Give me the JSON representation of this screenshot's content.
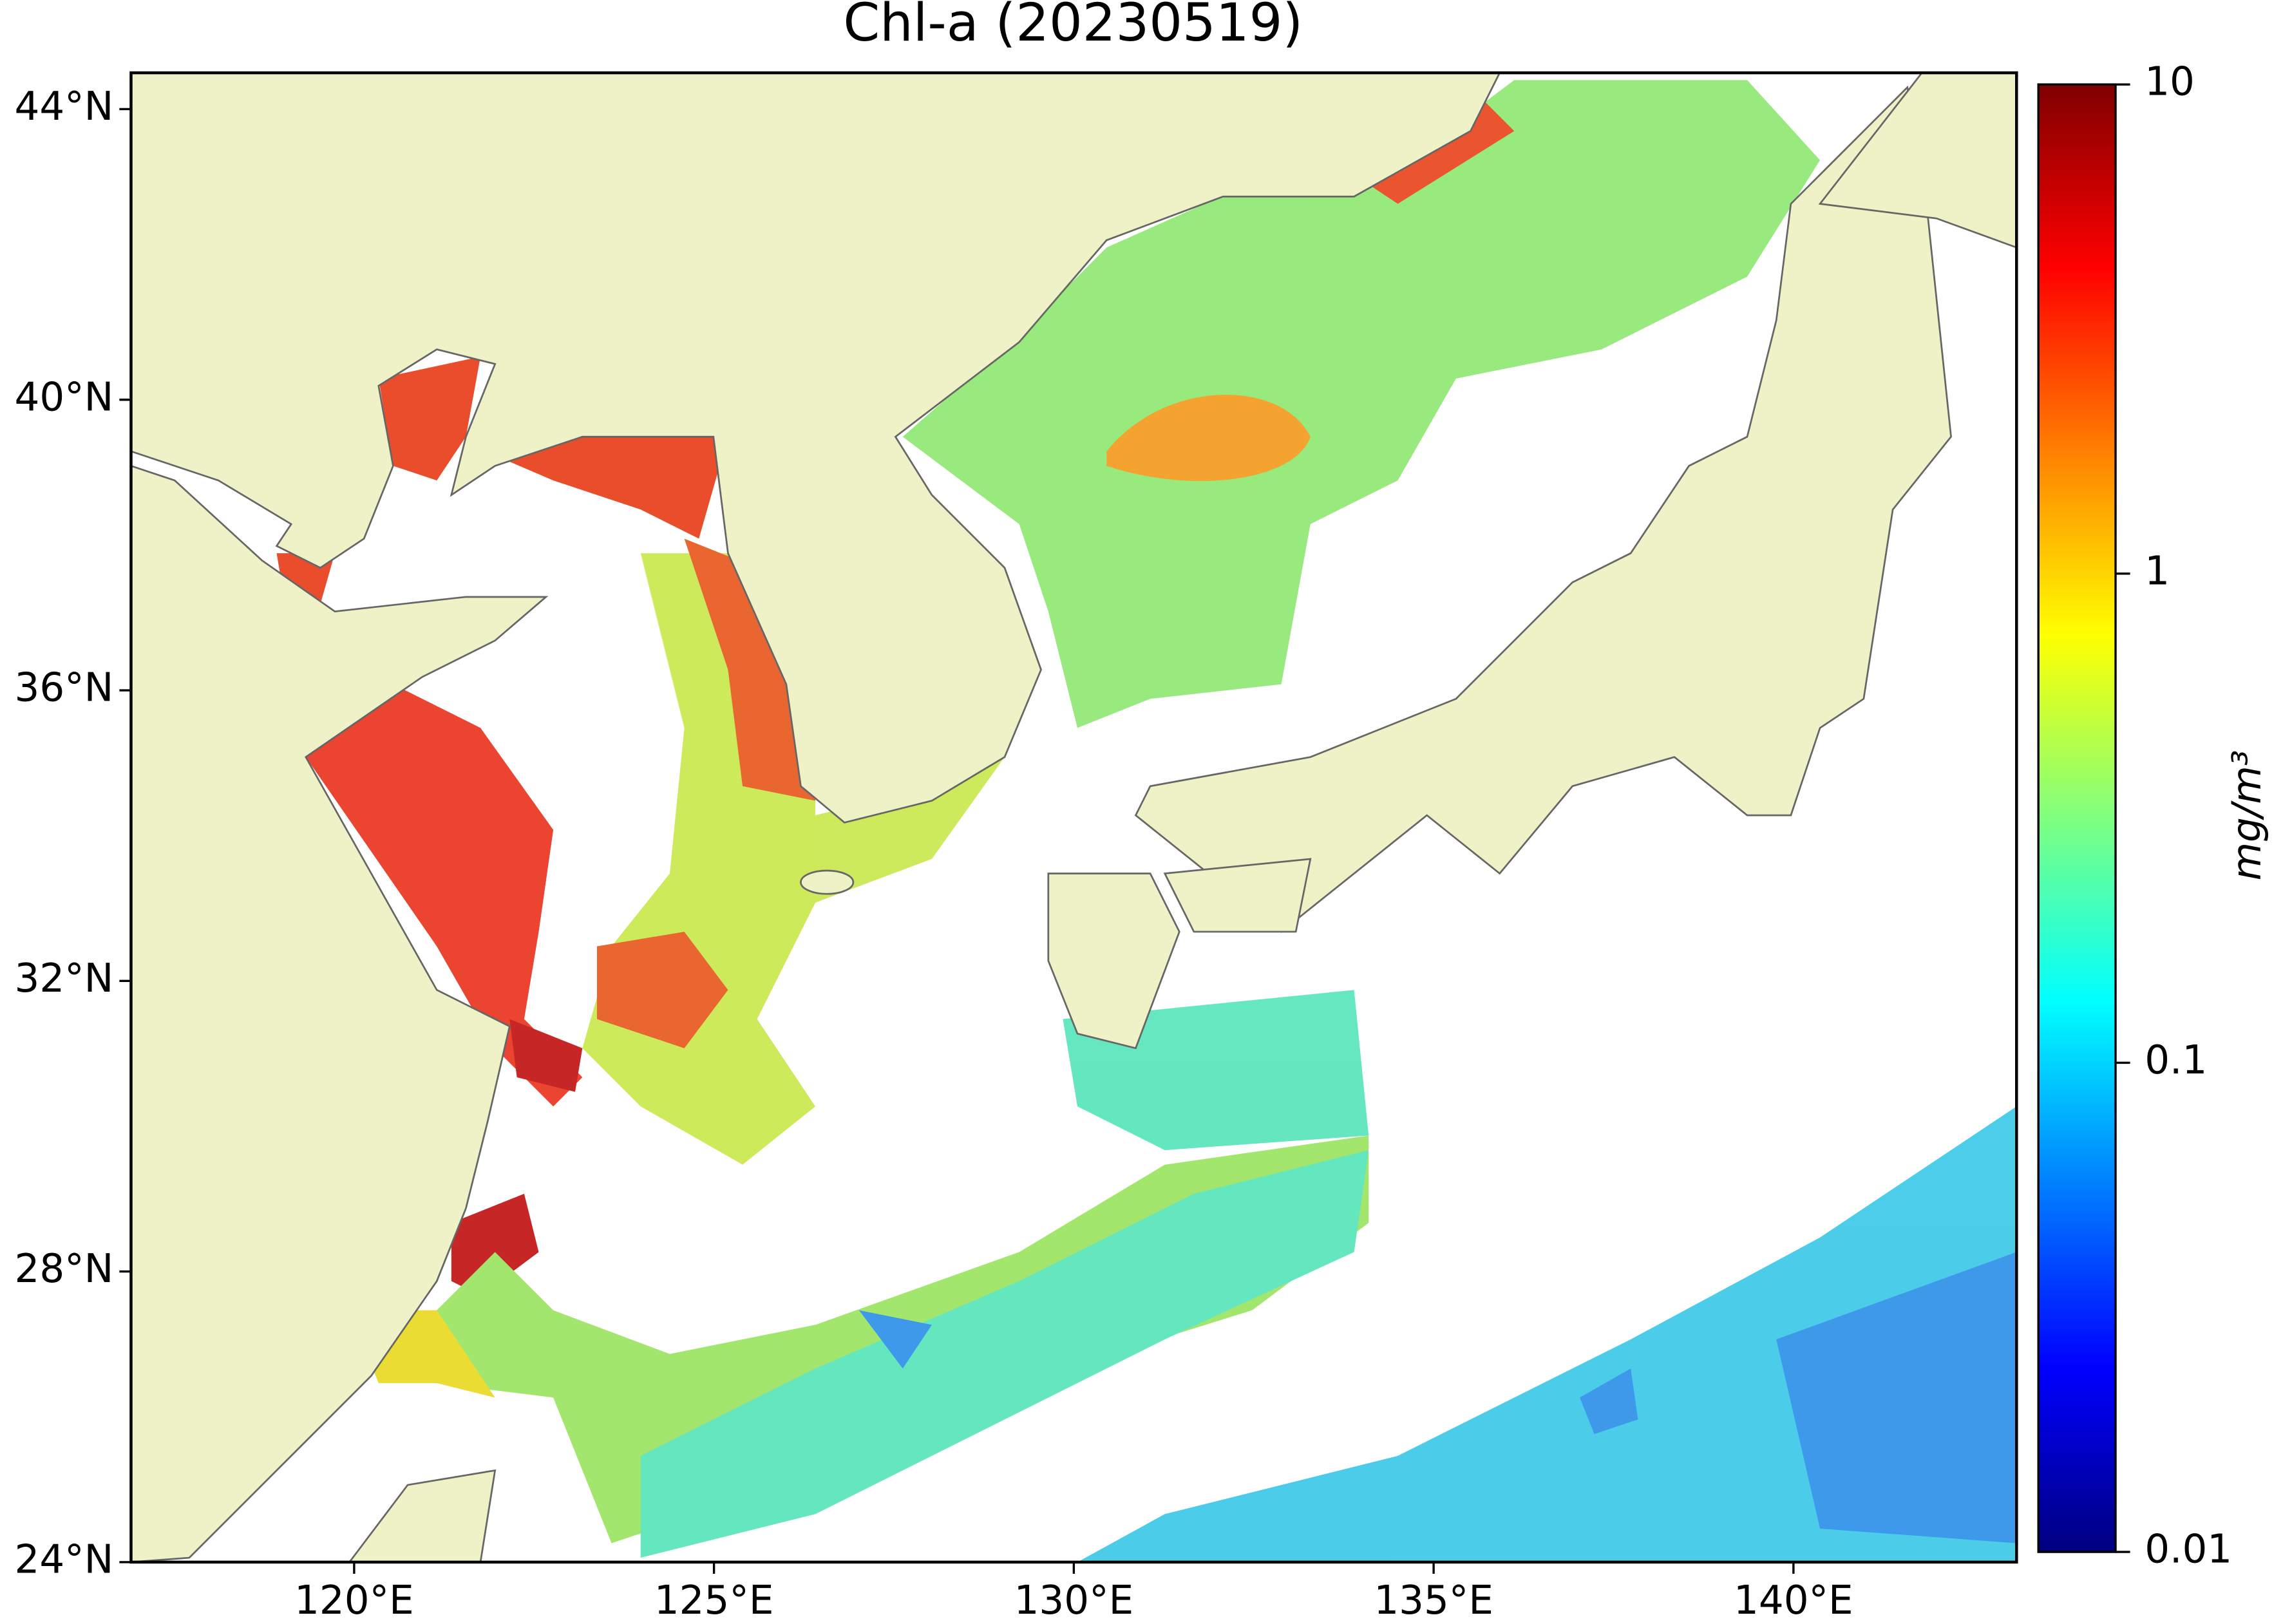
{
  "chart_data": {
    "type": "map",
    "title": "Chl-a (20230519)",
    "xlim": [
      116.9,
      143.1
    ],
    "ylim": [
      24,
      44.5
    ],
    "xticks": [
      {
        "value": 120,
        "label": "120°E"
      },
      {
        "value": 125,
        "label": "125°E"
      },
      {
        "value": 130,
        "label": "130°E"
      },
      {
        "value": 135,
        "label": "135°E"
      },
      {
        "value": 140,
        "label": "140°E"
      }
    ],
    "yticks": [
      {
        "value": 24,
        "label": "24°N"
      },
      {
        "value": 28,
        "label": "28°N"
      },
      {
        "value": 32,
        "label": "32°N"
      },
      {
        "value": 36,
        "label": "36°N"
      },
      {
        "value": 40,
        "label": "40°N"
      },
      {
        "value": 44,
        "label": "44°N"
      }
    ],
    "colorbar": {
      "label": "mg/m³",
      "scale": "log",
      "lim": [
        0.01,
        10
      ],
      "ticks": [
        0.01,
        0.1,
        1,
        10
      ],
      "colormap": "jet"
    },
    "land_color": "#eff2c6",
    "coastline_color": "#666666"
  }
}
